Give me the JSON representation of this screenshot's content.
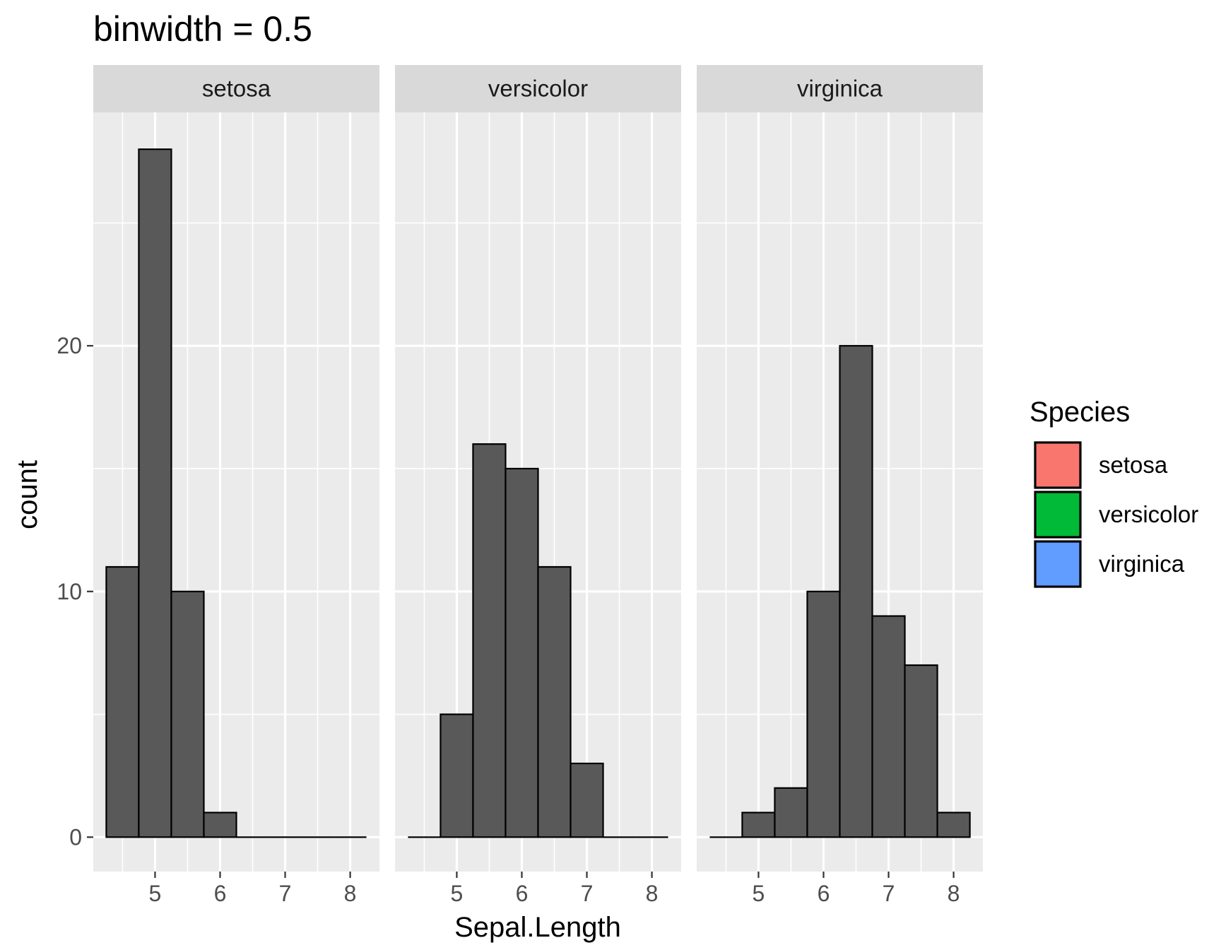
{
  "chart_data": {
    "type": "bar",
    "title": "binwidth =  0.5",
    "xlabel": "Sepal.Length",
    "ylabel": "count",
    "xlim": [
      4.05,
      8.45
    ],
    "ylim": [
      -1.4,
      29.5
    ],
    "x_ticks": [
      "5",
      "6",
      "7",
      "8"
    ],
    "x_tick_values": [
      5,
      6,
      7,
      8
    ],
    "y_ticks": [
      "0",
      "10",
      "20"
    ],
    "y_tick_values": [
      0,
      10,
      20
    ],
    "y_minor_values": [
      5,
      15,
      25
    ],
    "x_minor_values": [
      4.5,
      5.5,
      6.5,
      7.5
    ],
    "binwidth": 0.5,
    "grid": true,
    "legend_position": "right",
    "legend_title": "Species",
    "legend": [
      {
        "label": "setosa",
        "color": "#F8766D"
      },
      {
        "label": "versicolor",
        "color": "#00BA38"
      },
      {
        "label": "virginica",
        "color": "#619CFF"
      }
    ],
    "colors": {
      "panel_bg": "#EBEBEB",
      "strip_bg": "#D9D9D9",
      "grid": "#FFFFFF",
      "bar_fill": "#595959",
      "bar_stroke": "#000000"
    },
    "bin_centers": [
      4.5,
      5.0,
      5.5,
      6.0,
      6.5,
      7.0,
      7.5,
      8.0
    ],
    "facets": [
      {
        "label": "setosa",
        "counts": [
          11,
          28,
          10,
          1,
          0,
          0,
          0,
          0
        ]
      },
      {
        "label": "versicolor",
        "counts": [
          0,
          5,
          16,
          15,
          11,
          3,
          0,
          0
        ]
      },
      {
        "label": "virginica",
        "counts": [
          0,
          1,
          2,
          10,
          20,
          9,
          7,
          1
        ]
      }
    ]
  }
}
